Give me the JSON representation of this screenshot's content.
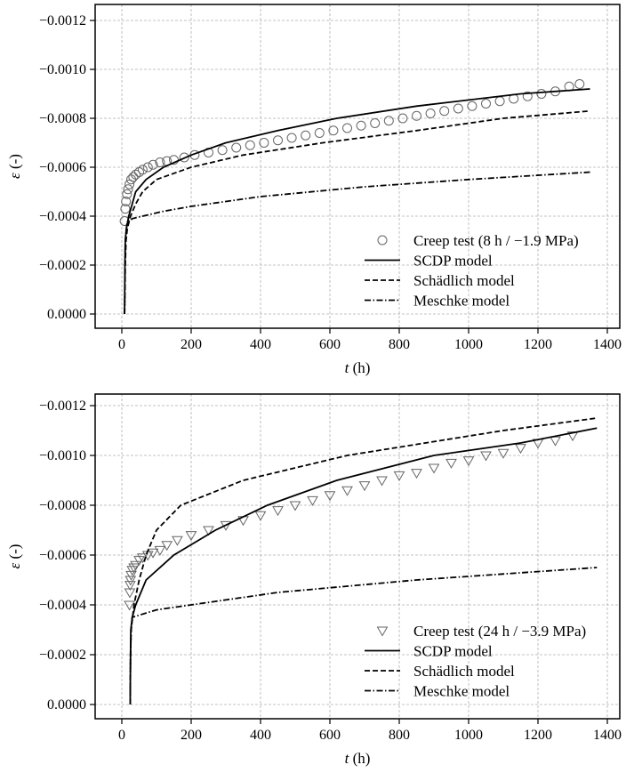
{
  "chart_data": [
    {
      "type": "line",
      "xlabel_var": "t",
      "xlabel_unit": "(h)",
      "ylabel_var": "ε",
      "ylabel_unit": "(-)",
      "xlim": [
        -30,
        1450
      ],
      "ylim": [
        6e-05,
        -0.00125
      ],
      "xticks": [
        0,
        200,
        400,
        600,
        800,
        1000,
        1200,
        1400
      ],
      "xtick_labels": [
        "0",
        "200",
        "400",
        "600",
        "800",
        "1000",
        "1200",
        "1400"
      ],
      "yticks": [
        0,
        -0.0002,
        -0.0004,
        -0.0006,
        -0.0008,
        -0.001,
        -0.0012
      ],
      "ytick_labels": [
        "0.0000",
        "−0.0002",
        "−0.0004",
        "−0.0006",
        "−0.0008",
        "−0.0010",
        "−0.0012"
      ],
      "grid": true,
      "legend_placement": "lower-right",
      "series": [
        {
          "name": "Creep test (8 h / −1.9 MPa)",
          "style": "circle-markers",
          "color": "#666666",
          "x": [
            8,
            10,
            12,
            15,
            18,
            22,
            27,
            33,
            40,
            50,
            60,
            75,
            90,
            110,
            130,
            150,
            180,
            210,
            250,
            290,
            330,
            370,
            410,
            450,
            490,
            530,
            570,
            610,
            650,
            690,
            730,
            770,
            810,
            850,
            890,
            930,
            970,
            1010,
            1050,
            1090,
            1130,
            1170,
            1210,
            1250,
            1290,
            1320
          ],
          "y": [
            -0.00038,
            -0.00043,
            -0.00046,
            -0.00049,
            -0.00051,
            -0.00053,
            -0.00055,
            -0.00056,
            -0.00057,
            -0.00058,
            -0.00059,
            -0.0006,
            -0.00061,
            -0.00062,
            -0.000625,
            -0.00063,
            -0.00064,
            -0.00065,
            -0.00066,
            -0.00067,
            -0.00068,
            -0.00069,
            -0.0007,
            -0.00071,
            -0.00072,
            -0.00073,
            -0.00074,
            -0.00075,
            -0.00076,
            -0.00077,
            -0.00078,
            -0.00079,
            -0.0008,
            -0.00081,
            -0.00082,
            -0.00083,
            -0.00084,
            -0.00085,
            -0.00086,
            -0.00087,
            -0.00088,
            -0.00089,
            -0.0009,
            -0.00091,
            -0.00093,
            -0.00094
          ]
        },
        {
          "name": "SCDP model",
          "style": "solid",
          "color": "#000000",
          "x": [
            8,
            9,
            10,
            13,
            20,
            40,
            70,
            120,
            200,
            300,
            450,
            620,
            850,
            1150,
            1350
          ],
          "y": [
            0,
            -0.0002,
            -0.0003,
            -0.00035,
            -0.0004,
            -0.0005,
            -0.00055,
            -0.0006,
            -0.00065,
            -0.0007,
            -0.00075,
            -0.0008,
            -0.00085,
            -0.0009,
            -0.00092
          ]
        },
        {
          "name": "Schädlich model",
          "style": "dashed",
          "color": "#000000",
          "x": [
            8,
            10,
            12,
            16,
            25,
            40,
            60,
            100,
            200,
            350,
            580,
            850,
            1100,
            1350
          ],
          "y": [
            0,
            -0.0002,
            -0.0003,
            -0.00035,
            -0.0004,
            -0.00045,
            -0.0005,
            -0.00055,
            -0.0006,
            -0.00065,
            -0.0007,
            -0.00075,
            -0.0008,
            -0.00083
          ]
        },
        {
          "name": "Meschke model",
          "style": "dashdot",
          "color": "#000000",
          "x": [
            8,
            10,
            15,
            30,
            60,
            120,
            200,
            400,
            700,
            1000,
            1350
          ],
          "y": [
            0,
            -0.0003,
            -0.00037,
            -0.00039,
            -0.0004,
            -0.00042,
            -0.00044,
            -0.00048,
            -0.00052,
            -0.00055,
            -0.00058
          ]
        }
      ]
    },
    {
      "type": "line",
      "xlabel_var": "t",
      "xlabel_unit": "(h)",
      "ylabel_var": "ε",
      "ylabel_unit": "(-)",
      "xlim": [
        -30,
        1450
      ],
      "ylim": [
        6e-05,
        -0.00125
      ],
      "xticks": [
        0,
        200,
        400,
        600,
        800,
        1000,
        1200,
        1400
      ],
      "xtick_labels": [
        "0",
        "200",
        "400",
        "600",
        "800",
        "1000",
        "1200",
        "1400"
      ],
      "yticks": [
        0,
        -0.0002,
        -0.0004,
        -0.0006,
        -0.0008,
        -0.001,
        -0.0012
      ],
      "ytick_labels": [
        "0.0000",
        "−0.0002",
        "−0.0004",
        "−0.0006",
        "−0.0008",
        "−0.0010",
        "−0.0012"
      ],
      "grid": true,
      "legend_placement": "lower-right",
      "series": [
        {
          "name": "Creep test (24 h / −3.9 MPa)",
          "style": "triangle-down-markers",
          "color": "#666666",
          "x": [
            22,
            23,
            24,
            25,
            27,
            30,
            35,
            40,
            50,
            60,
            75,
            90,
            110,
            130,
            160,
            200,
            250,
            300,
            350,
            400,
            450,
            500,
            550,
            600,
            650,
            700,
            750,
            800,
            850,
            900,
            950,
            1000,
            1050,
            1100,
            1150,
            1200,
            1250,
            1300
          ],
          "y": [
            -0.0004,
            -0.00045,
            -0.00048,
            -0.0005,
            -0.00052,
            -0.00054,
            -0.00055,
            -0.00056,
            -0.00058,
            -0.00059,
            -0.0006,
            -0.00061,
            -0.00062,
            -0.00064,
            -0.00066,
            -0.00068,
            -0.0007,
            -0.00072,
            -0.00074,
            -0.00076,
            -0.00078,
            -0.0008,
            -0.00082,
            -0.00084,
            -0.00086,
            -0.00088,
            -0.0009,
            -0.00092,
            -0.00093,
            -0.00095,
            -0.00097,
            -0.00098,
            -0.001,
            -0.00101,
            -0.00103,
            -0.00105,
            -0.00106,
            -0.00108
          ]
        },
        {
          "name": "SCDP model",
          "style": "solid",
          "color": "#000000",
          "x": [
            24,
            25,
            26,
            30,
            40,
            70,
            150,
            270,
            420,
            620,
            900,
            1150,
            1370
          ],
          "y": [
            0,
            -0.0002,
            -0.0003,
            -0.00035,
            -0.0004,
            -0.0005,
            -0.0006,
            -0.0007,
            -0.0008,
            -0.0009,
            -0.001,
            -0.00105,
            -0.00111
          ]
        },
        {
          "name": "Schädlich model",
          "style": "dashed",
          "color": "#000000",
          "x": [
            24,
            25,
            27,
            35,
            50,
            70,
            100,
            170,
            350,
            650,
            1100,
            1370
          ],
          "y": [
            0,
            -0.0002,
            -0.0003,
            -0.0004,
            -0.0005,
            -0.0006,
            -0.0007,
            -0.0008,
            -0.0009,
            -0.001,
            -0.0011,
            -0.00115
          ]
        },
        {
          "name": "Meschke model",
          "style": "dashdot",
          "color": "#000000",
          "x": [
            24,
            25,
            27,
            30,
            100,
            200,
            450,
            850,
            1370
          ],
          "y": [
            0,
            -0.0002,
            -0.0003,
            -0.00035,
            -0.00038,
            -0.0004,
            -0.00045,
            -0.0005,
            -0.00055
          ]
        }
      ]
    }
  ]
}
